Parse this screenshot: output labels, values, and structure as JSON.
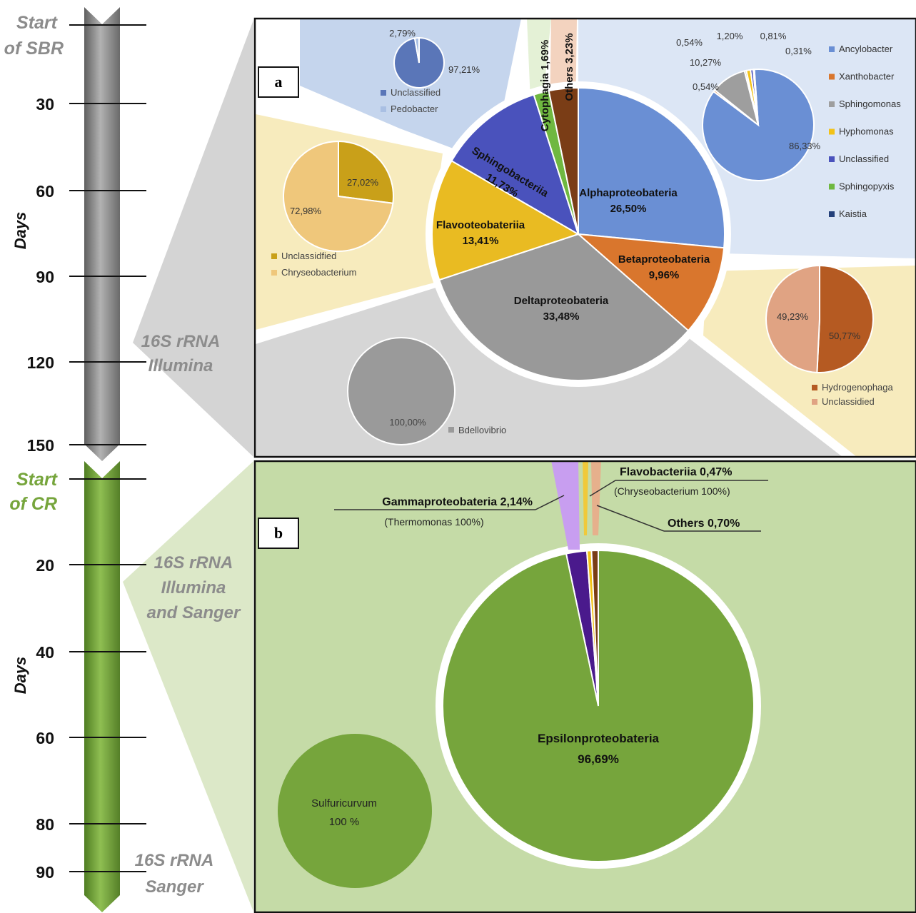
{
  "timeline": {
    "sbr": {
      "start_label": [
        "Start",
        "of SBR"
      ],
      "axis_label": "Days",
      "ticks": [
        "30",
        "60",
        "90",
        "120",
        "150"
      ],
      "color": "#8c8c8c"
    },
    "cr": {
      "start_label": [
        "Start",
        "of CR"
      ],
      "axis_label": "Days",
      "ticks": [
        "20",
        "40",
        "60",
        "80",
        "90"
      ],
      "color": "#76a53c"
    },
    "methods": [
      [
        "16S rRNA",
        "Illumina"
      ],
      [
        "16S rRNA",
        "Illumina",
        "and Sanger"
      ],
      [
        "16S rRNA",
        "Sanger"
      ]
    ]
  },
  "chart_data": [
    {
      "panel": "a",
      "type": "pie",
      "main": [
        {
          "name": "Alphaproteobateria",
          "value": 26.5,
          "label": "26,50%",
          "color": "#6a8fd4"
        },
        {
          "name": "Betaproteobateria",
          "value": 9.96,
          "label": "9,96%",
          "color": "#d9762d"
        },
        {
          "name": "Deltaproteobateria",
          "value": 33.48,
          "label": "33,48%",
          "color": "#999999"
        },
        {
          "name": "Flavooteobateriia",
          "value": 13.41,
          "label": "13,41%",
          "color": "#e9bb22"
        },
        {
          "name": "Sphingobacteriia",
          "value": 11.73,
          "label": "11,73%",
          "color": "#4a52bc"
        },
        {
          "name": "Cytophagia",
          "value": 1.69,
          "label": "1,69%",
          "color": "#6fb840"
        },
        {
          "name": "Others",
          "value": 3.23,
          "label": "3,23%",
          "color": "#7a3d16"
        }
      ],
      "sub": [
        {
          "parent": "Alphaproteobateria",
          "slices": [
            {
              "name": "Ancylobacter",
              "value": 86.33,
              "label": "86,33%",
              "color": "#6a8fd4"
            },
            {
              "name": "Xanthobacter",
              "value": 0.54,
              "label": "0,54%",
              "color": "#d9762d"
            },
            {
              "name": "Sphingomonas",
              "value": 10.27,
              "label": "10,27%",
              "color": "#9e9e9e"
            },
            {
              "name": "",
              "value": 0.54,
              "label": "0,54%",
              "color": "#c0c0c0"
            },
            {
              "name": "Hyphomonas",
              "value": 1.2,
              "label": "1,20%",
              "color": "#f2c218"
            },
            {
              "name": "Unclassified",
              "value": 0.81,
              "label": "0,81%",
              "color": "#4a52bc"
            },
            {
              "name": "Sphingopyxis",
              "value": 0.31,
              "label": "0,31%",
              "color": "#6fb840"
            },
            {
              "name": "Kaistia",
              "value": 0,
              "label": "",
              "color": "#24407a"
            }
          ]
        },
        {
          "parent": "Sphingobacteriia",
          "slices": [
            {
              "name": "Unclassified",
              "value": 97.21,
              "label": "97,21%",
              "color": "#5a76b8"
            },
            {
              "name": "Pedobacter",
              "value": 2.79,
              "label": "2,79%",
              "color": "#a9bfe3"
            }
          ]
        },
        {
          "parent": "Flavooteobateriia",
          "slices": [
            {
              "name": "Unclassidfied",
              "value": 27.02,
              "label": "27,02%",
              "color": "#c9a019"
            },
            {
              "name": "Chryseobacterium",
              "value": 72.98,
              "label": "72,98%",
              "color": "#efc77b"
            }
          ]
        },
        {
          "parent": "Betaproteobateria",
          "slices": [
            {
              "name": "Hydrogenophaga",
              "value": 50.77,
              "label": "50,77%",
              "color": "#b55a22"
            },
            {
              "name": "Unclassidied",
              "value": 49.23,
              "label": "49,23%",
              "color": "#e0a383"
            }
          ]
        },
        {
          "parent": "Deltaproteobateria",
          "slices": [
            {
              "name": "Bdellovibrio",
              "value": 100,
              "label": "100,00%",
              "color": "#9a9a9a"
            }
          ]
        }
      ]
    },
    {
      "panel": "b",
      "type": "pie",
      "main": [
        {
          "name": "Epsilonproteobateria",
          "value": 96.69,
          "label": "96,69%",
          "color": "#76a53c"
        },
        {
          "name": "Gammaproteobateria",
          "value": 2.14,
          "label": "2,14%",
          "genus": "(Thermomonas 100%)",
          "color": "#c89ef0"
        },
        {
          "name": "Flavobacteriia",
          "value": 0.47,
          "label": "0,47%",
          "genus": "(Chryseobacterium 100%)",
          "color": "#f0c93a"
        },
        {
          "name": "Others",
          "value": 0.7,
          "label": "0,70%",
          "color": "#e6b08c"
        }
      ],
      "sub": [
        {
          "parent": "Epsilonproteobateria",
          "slices": [
            {
              "name": "Sulfuricurvum",
              "value": 100,
              "label": "100 %",
              "color": "#76a53c"
            }
          ]
        }
      ]
    }
  ]
}
